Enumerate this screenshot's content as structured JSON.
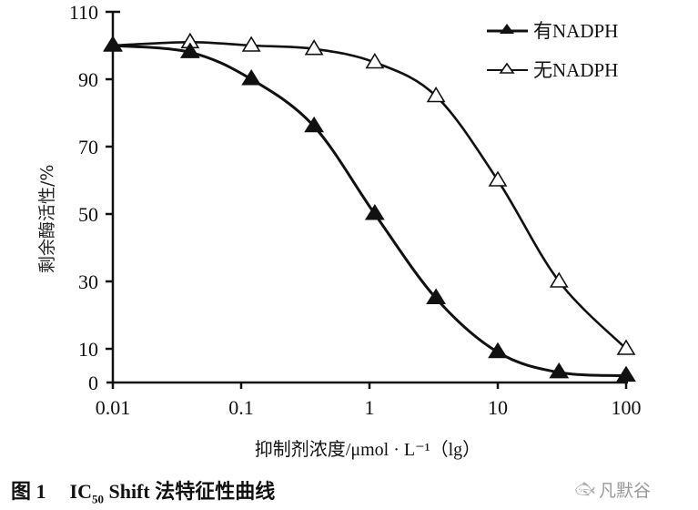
{
  "chart_data": {
    "type": "line",
    "title": "图 1 IC50 Shift 法特征性曲线",
    "xlabel": "抑制剂浓度/μmol·L⁻¹（lg）",
    "ylabel": "剩余酶活性/%",
    "xscale": "log",
    "xlim": [
      0.01,
      100
    ],
    "ylim": [
      0,
      110
    ],
    "xticks": [
      0.01,
      0.1,
      1,
      10,
      100
    ],
    "xtick_labels": [
      "0.01",
      "0.1",
      "1",
      "10",
      "100"
    ],
    "yticks": [
      0,
      10,
      30,
      50,
      70,
      90,
      110
    ],
    "ytick_labels": [
      "0",
      "10",
      "30",
      "50",
      "70",
      "90",
      "110"
    ],
    "grid": false,
    "legend_position": "upper right",
    "series": [
      {
        "name": "有NADPH",
        "marker": "filled-triangle",
        "x": [
          0.01,
          0.04,
          0.12,
          0.37,
          1.1,
          3.3,
          10,
          30,
          100
        ],
        "y": [
          100,
          98,
          90,
          76,
          50,
          25,
          9,
          3,
          2
        ]
      },
      {
        "name": "无NADPH",
        "marker": "open-triangle",
        "x": [
          0.01,
          0.04,
          0.12,
          0.37,
          1.1,
          3.3,
          10,
          30,
          100
        ],
        "y": [
          100,
          101,
          100,
          99,
          95,
          85,
          60,
          30,
          10
        ]
      }
    ]
  },
  "figure": {
    "caption_number": "图 1",
    "caption_ic": "IC",
    "caption_sub": "50",
    "caption_rest": " Shift 法特征性曲线",
    "xaxis_title": "抑制剂浓度/μmol · L⁻¹（lg）",
    "yaxis_title": "剩余酶活性/%",
    "legend": [
      "有NADPH",
      "无NADPH"
    ],
    "xtick_labels": [
      "0.01",
      "0.1",
      "1",
      "10",
      "100"
    ],
    "ytick_labels": [
      "110",
      "90",
      "70",
      "50",
      "30",
      "10",
      "0"
    ]
  },
  "watermark": {
    "icon": "fish-logo-icon",
    "text": "凡默谷"
  },
  "colors": {
    "line": "#111111",
    "background": "#ffffff",
    "watermark": "#999999"
  }
}
